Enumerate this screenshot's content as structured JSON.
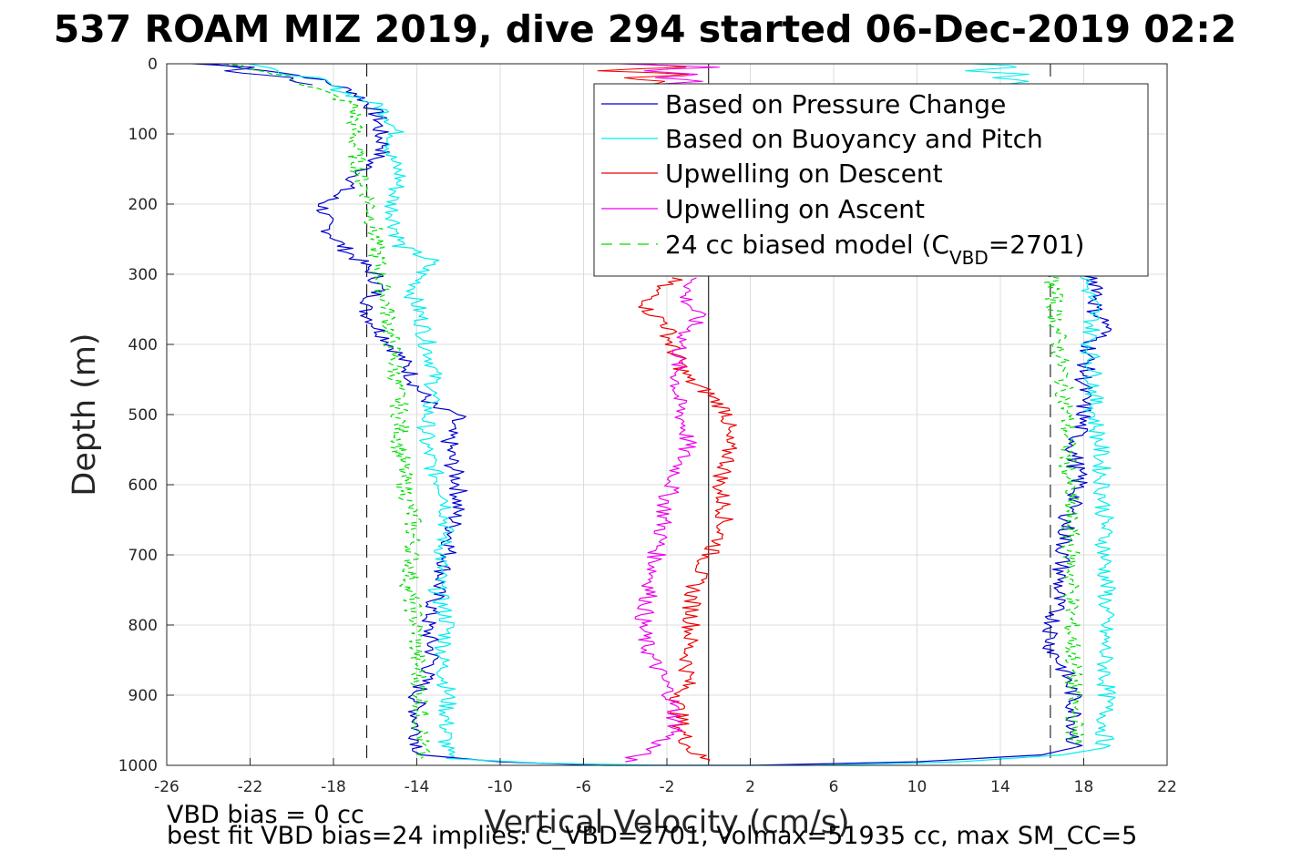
{
  "chart_data": {
    "type": "line",
    "title": "537 ROAM MIZ 2019, dive 294 started 06-Dec-2019 02:2",
    "xlabel": "Vertical Velocity (cm/s)",
    "ylabel": "Depth (m)",
    "xlim": [
      -26,
      22
    ],
    "ylim": [
      0,
      1000
    ],
    "y_reversed": true,
    "grid": true,
    "x_ticks": [
      "-26",
      "-22",
      "-18",
      "-14",
      "-10",
      "-6",
      "-2",
      "2",
      "6",
      "10",
      "14",
      "18",
      "22"
    ],
    "y_ticks": [
      "0",
      "100",
      "200",
      "300",
      "400",
      "500",
      "600",
      "700",
      "800",
      "900",
      "1000"
    ],
    "legend_position": "top-right",
    "legend": {
      "pressure": "Based on Pressure Change",
      "buoyancy": "Based on Buoyancy and Pitch",
      "descent": "Upwelling on Descent",
      "ascent": "Upwelling on Ascent",
      "model_prefix": "24 cc biased model (C",
      "model_sub": "VBD",
      "model_suffix": "=2701)"
    },
    "reference_lines": [
      {
        "style": "dashed",
        "color": "#000000",
        "x": -16.4
      },
      {
        "style": "solid",
        "color": "#000000",
        "x": 0
      },
      {
        "style": "dashed",
        "color": "#000000",
        "x": 16.4
      }
    ],
    "series": [
      {
        "key": "pressure_descent",
        "color": "#0000cc",
        "width": 1.2,
        "depths": [
          0,
          10,
          20,
          40,
          60,
          80,
          100,
          120,
          150,
          180,
          200,
          230,
          260,
          290,
          300,
          320,
          350,
          380,
          400,
          430,
          460,
          490,
          500,
          520,
          560,
          600,
          620,
          650,
          700,
          750,
          800,
          850,
          900,
          950,
          985
        ],
        "values": [
          -24,
          -21,
          -19,
          -17,
          -16.2,
          -15.8,
          -15.8,
          -15.5,
          -16.5,
          -17.5,
          -18.5,
          -18.4,
          -17.6,
          -16.4,
          -16.0,
          -15.8,
          -16.5,
          -15.8,
          -15.2,
          -14.5,
          -14.0,
          -13.2,
          -12.0,
          -12.5,
          -12.4,
          -12.0,
          -12.0,
          -12.2,
          -12.5,
          -13.0,
          -13.5,
          -13.2,
          -14.0,
          -14.0,
          -13.8
        ]
      },
      {
        "key": "buoyancy_descent",
        "color": "#00eeee",
        "width": 1.2,
        "depths": [
          0,
          10,
          20,
          40,
          60,
          80,
          100,
          130,
          160,
          200,
          230,
          260,
          280,
          300,
          330,
          360,
          400,
          430,
          460,
          500,
          540,
          580,
          620,
          660,
          700,
          750,
          800,
          850,
          900,
          940,
          990
        ],
        "values": [
          -22,
          -21,
          -19,
          -17.5,
          -15.8,
          -15.2,
          -15.0,
          -15.3,
          -14.8,
          -15.2,
          -15.0,
          -14.8,
          -13.3,
          -13.8,
          -14.2,
          -13.8,
          -13.5,
          -13.2,
          -13.2,
          -13.5,
          -13.6,
          -13.2,
          -12.5,
          -12.6,
          -12.8,
          -13.0,
          -12.5,
          -12.8,
          -12.5,
          -12.6,
          -12.6
        ]
      },
      {
        "key": "model_descent",
        "color": "#00dd00",
        "width": 1.2,
        "dashed": true,
        "depths": [
          0,
          20,
          60,
          100,
          150,
          200,
          250,
          300,
          350,
          400,
          450,
          500,
          550,
          600,
          650,
          700,
          750,
          800,
          850,
          900,
          950,
          990
        ],
        "values": [
          -23,
          -20,
          -17,
          -17.0,
          -16.8,
          -16.2,
          -16.0,
          -15.8,
          -15.4,
          -15.2,
          -15.0,
          -14.8,
          -14.8,
          -14.6,
          -14.2,
          -14.2,
          -14.4,
          -14.0,
          -14.0,
          -13.8,
          -13.8,
          -13.8
        ]
      },
      {
        "key": "descent_upwelling",
        "color": "#ee0000",
        "width": 1.2,
        "depths": [
          305,
          320,
          350,
          370,
          400,
          420,
          450,
          470,
          500,
          530,
          560,
          600,
          640,
          680,
          700,
          730,
          760,
          800,
          840,
          880,
          910,
          950,
          980,
          995
        ],
        "values": [
          -1.5,
          -2.5,
          -3.0,
          -2.0,
          -1.8,
          -1.5,
          -1.0,
          0.0,
          1.0,
          0.8,
          1.0,
          0.5,
          0.8,
          0.5,
          0.0,
          -0.5,
          -0.8,
          -0.8,
          -1.0,
          -1.0,
          -1.5,
          -1.3,
          -0.8,
          0.0
        ]
      },
      {
        "key": "ascent_upwelling",
        "color": "#ee00ee",
        "width": 1.2,
        "depths": [
          305,
          330,
          360,
          390,
          420,
          450,
          480,
          510,
          540,
          580,
          620,
          660,
          700,
          750,
          800,
          830,
          860,
          900,
          950,
          980,
          995
        ],
        "values": [
          -0.5,
          -1.2,
          -0.5,
          -1.2,
          -1.5,
          -1.5,
          -1.5,
          -1.2,
          -1.0,
          -1.5,
          -2.0,
          -2.2,
          -2.5,
          -2.8,
          -3.2,
          -3.0,
          -2.5,
          -1.8,
          -1.5,
          -3.0,
          -4.0
        ]
      },
      {
        "key": "pressure_ascent",
        "color": "#0000cc",
        "width": 1.2,
        "depths": [
          300,
          320,
          350,
          375,
          400,
          450,
          500,
          550,
          600,
          650,
          700,
          750,
          800,
          830,
          860,
          900,
          950,
          975
        ],
        "values": [
          18.2,
          18.8,
          18.5,
          19.2,
          18.3,
          18.0,
          18.0,
          17.5,
          17.8,
          17.2,
          17.0,
          16.8,
          16.5,
          16.4,
          17.0,
          17.5,
          17.6,
          17.5
        ]
      },
      {
        "key": "buoyancy_ascent",
        "color": "#00eeee",
        "width": 1.2,
        "depths": [
          300,
          350,
          400,
          450,
          500,
          550,
          600,
          650,
          700,
          750,
          800,
          850,
          900,
          950,
          975
        ],
        "values": [
          18.0,
          18.5,
          18.3,
          18.5,
          18.5,
          18.8,
          18.9,
          19.0,
          19.0,
          19.1,
          19.0,
          19.0,
          19.1,
          19.0,
          19.0
        ]
      },
      {
        "key": "model_ascent",
        "color": "#00dd00",
        "width": 1.2,
        "dashed": true,
        "depths": [
          300,
          350,
          400,
          450,
          500,
          550,
          600,
          650,
          700,
          750,
          800,
          850,
          900,
          950,
          975
        ],
        "values": [
          16.5,
          16.6,
          16.8,
          17.0,
          17.2,
          17.2,
          17.3,
          17.3,
          17.4,
          17.4,
          17.4,
          17.5,
          17.5,
          17.6,
          17.6
        ]
      },
      {
        "key": "bottom_transition_blue",
        "color": "#0000cc",
        "width": 1.2,
        "depths": [
          985,
          995,
          1000,
          1000,
          995,
          985,
          975
        ],
        "values": [
          -13.8,
          -10,
          -5,
          2,
          10,
          16,
          17.5
        ]
      },
      {
        "key": "bottom_transition_cyan",
        "color": "#00eeee",
        "width": 1.2,
        "depths": [
          990,
          997,
          1000,
          1000,
          995,
          985,
          975
        ],
        "values": [
          -12.6,
          -8,
          -2,
          5,
          12,
          17,
          19.0
        ]
      },
      {
        "key": "surface_spikes_left",
        "color": "#0000cc",
        "width": 1.0,
        "depths": [
          0,
          5,
          10,
          20,
          30
        ],
        "values": [
          -25,
          -22,
          -23,
          -20,
          -19
        ]
      },
      {
        "key": "surface_spikes_right",
        "color": "#00eeee",
        "width": 1.0,
        "depths": [
          0,
          5,
          10,
          15,
          20,
          25,
          30
        ],
        "values": [
          13,
          15,
          12.5,
          15.5,
          13.5,
          15,
          14
        ]
      },
      {
        "key": "surface_upwelling_descent",
        "color": "#ee0000",
        "width": 1.0,
        "depths": [
          0,
          5,
          10,
          15,
          20,
          25,
          30
        ],
        "values": [
          -3.5,
          -1.5,
          -5,
          -1,
          -4,
          -2,
          -3
        ]
      },
      {
        "key": "surface_upwelling_ascent",
        "color": "#ee00ee",
        "width": 1.0,
        "depths": [
          0,
          5,
          10,
          15,
          20,
          25,
          30
        ],
        "values": [
          -4.0,
          0.5,
          -3.5,
          -0.5,
          -2.5,
          0.0,
          -3.0
        ]
      }
    ]
  },
  "notes": {
    "line1": "VBD bias = 0 cc",
    "line2": "best fit VBD bias=24 implies: C_VBD=2701, Volmax=51935 cc, max SM_CC=5"
  }
}
